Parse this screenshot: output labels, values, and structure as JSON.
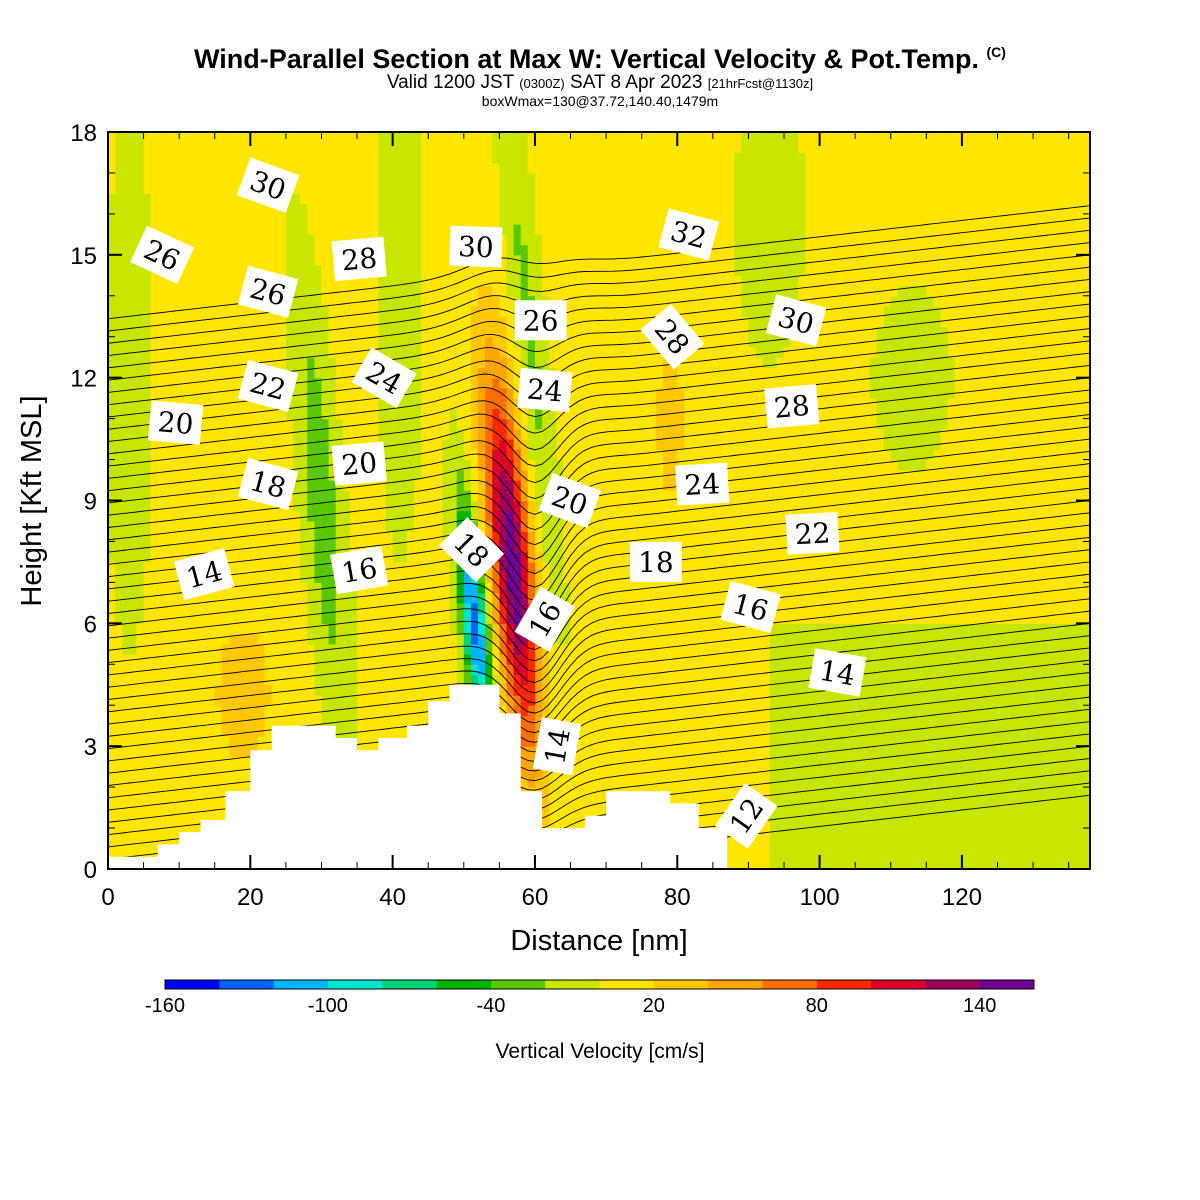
{
  "header": {
    "title_main": "Wind-Parallel Section at Max W: Vertical Velocity & Pot.Temp.",
    "title_copyright": "(C)",
    "valid_prefix": "Valid 1200 JST",
    "valid_utc": "(0300Z)",
    "valid_date": "SAT 8 Apr 2023",
    "valid_fcst": "[21hrFcst@1130z]",
    "box_info": "boxWmax=130@37.72,140.40,1479m"
  },
  "chart_data": {
    "type": "heatmap",
    "xlabel": "Distance [nm]",
    "ylabel": "Height [Kft MSL]",
    "xlim": [
      0,
      138
    ],
    "ylim": [
      0,
      18
    ],
    "xticks": [
      "0",
      "20",
      "40",
      "60",
      "80",
      "100",
      "120"
    ],
    "yticks": [
      "0",
      "3",
      "6",
      "9",
      "12",
      "15",
      "18"
    ],
    "colorbar": {
      "label": "Vertical Velocity [cm/s]",
      "tick_labels": [
        "-160",
        "-100",
        "-40",
        "20",
        "80",
        "140"
      ],
      "tick_values": [
        -160,
        -100,
        -40,
        20,
        80,
        140
      ],
      "range": [
        -160,
        160
      ],
      "colors": [
        "#0000ff",
        "#0064ff",
        "#00b4ff",
        "#00e6cc",
        "#00d278",
        "#00b400",
        "#5ac800",
        "#c8e600",
        "#ffe600",
        "#ffc800",
        "#ffa500",
        "#ff6e00",
        "#ff2800",
        "#dc0028",
        "#a0005a",
        "#6e0096"
      ]
    },
    "theta_contour_labels": [
      {
        "text": "30",
        "x": 22.5,
        "y": 16.7,
        "rot": 20
      },
      {
        "text": "26",
        "x": 7.6,
        "y": 15.0,
        "rot": 25
      },
      {
        "text": "28",
        "x": 35.3,
        "y": 14.9,
        "rot": -5
      },
      {
        "text": "30",
        "x": 51.7,
        "y": 15.2,
        "rot": 2
      },
      {
        "text": "32",
        "x": 81.6,
        "y": 15.5,
        "rot": 15
      },
      {
        "text": "26",
        "x": 22.5,
        "y": 14.1,
        "rot": 15
      },
      {
        "text": "26",
        "x": 60.8,
        "y": 13.4,
        "rot": 0
      },
      {
        "text": "28",
        "x": 79.3,
        "y": 13.0,
        "rot": 50
      },
      {
        "text": "30",
        "x": 96.7,
        "y": 13.4,
        "rot": 15
      },
      {
        "text": "24",
        "x": 38.8,
        "y": 12.0,
        "rot": 30
      },
      {
        "text": "22",
        "x": 22.5,
        "y": 11.8,
        "rot": 15
      },
      {
        "text": "24",
        "x": 61.4,
        "y": 11.7,
        "rot": 5
      },
      {
        "text": "20",
        "x": 9.5,
        "y": 10.9,
        "rot": 5
      },
      {
        "text": "28",
        "x": 96.1,
        "y": 11.3,
        "rot": -5
      },
      {
        "text": "20",
        "x": 35.3,
        "y": 9.9,
        "rot": -5
      },
      {
        "text": "18",
        "x": 22.5,
        "y": 9.4,
        "rot": 15
      },
      {
        "text": "24",
        "x": 83.5,
        "y": 9.4,
        "rot": -3
      },
      {
        "text": "20",
        "x": 64.9,
        "y": 9.0,
        "rot": 20
      },
      {
        "text": "22",
        "x": 99.0,
        "y": 8.2,
        "rot": -3
      },
      {
        "text": "18",
        "x": 51.1,
        "y": 7.8,
        "rot": 45
      },
      {
        "text": "18",
        "x": 77.0,
        "y": 7.5,
        "rot": 0
      },
      {
        "text": "16",
        "x": 35.3,
        "y": 7.3,
        "rot": -10
      },
      {
        "text": "14",
        "x": 13.5,
        "y": 7.2,
        "rot": -15
      },
      {
        "text": "16",
        "x": 61.4,
        "y": 6.1,
        "rot": -60
      },
      {
        "text": "16",
        "x": 90.3,
        "y": 6.4,
        "rot": 15
      },
      {
        "text": "14",
        "x": 102.5,
        "y": 4.8,
        "rot": 10
      },
      {
        "text": "14",
        "x": 63.1,
        "y": 3.0,
        "rot": -80
      },
      {
        "text": "12",
        "x": 89.7,
        "y": 1.3,
        "rot": -55
      }
    ]
  }
}
